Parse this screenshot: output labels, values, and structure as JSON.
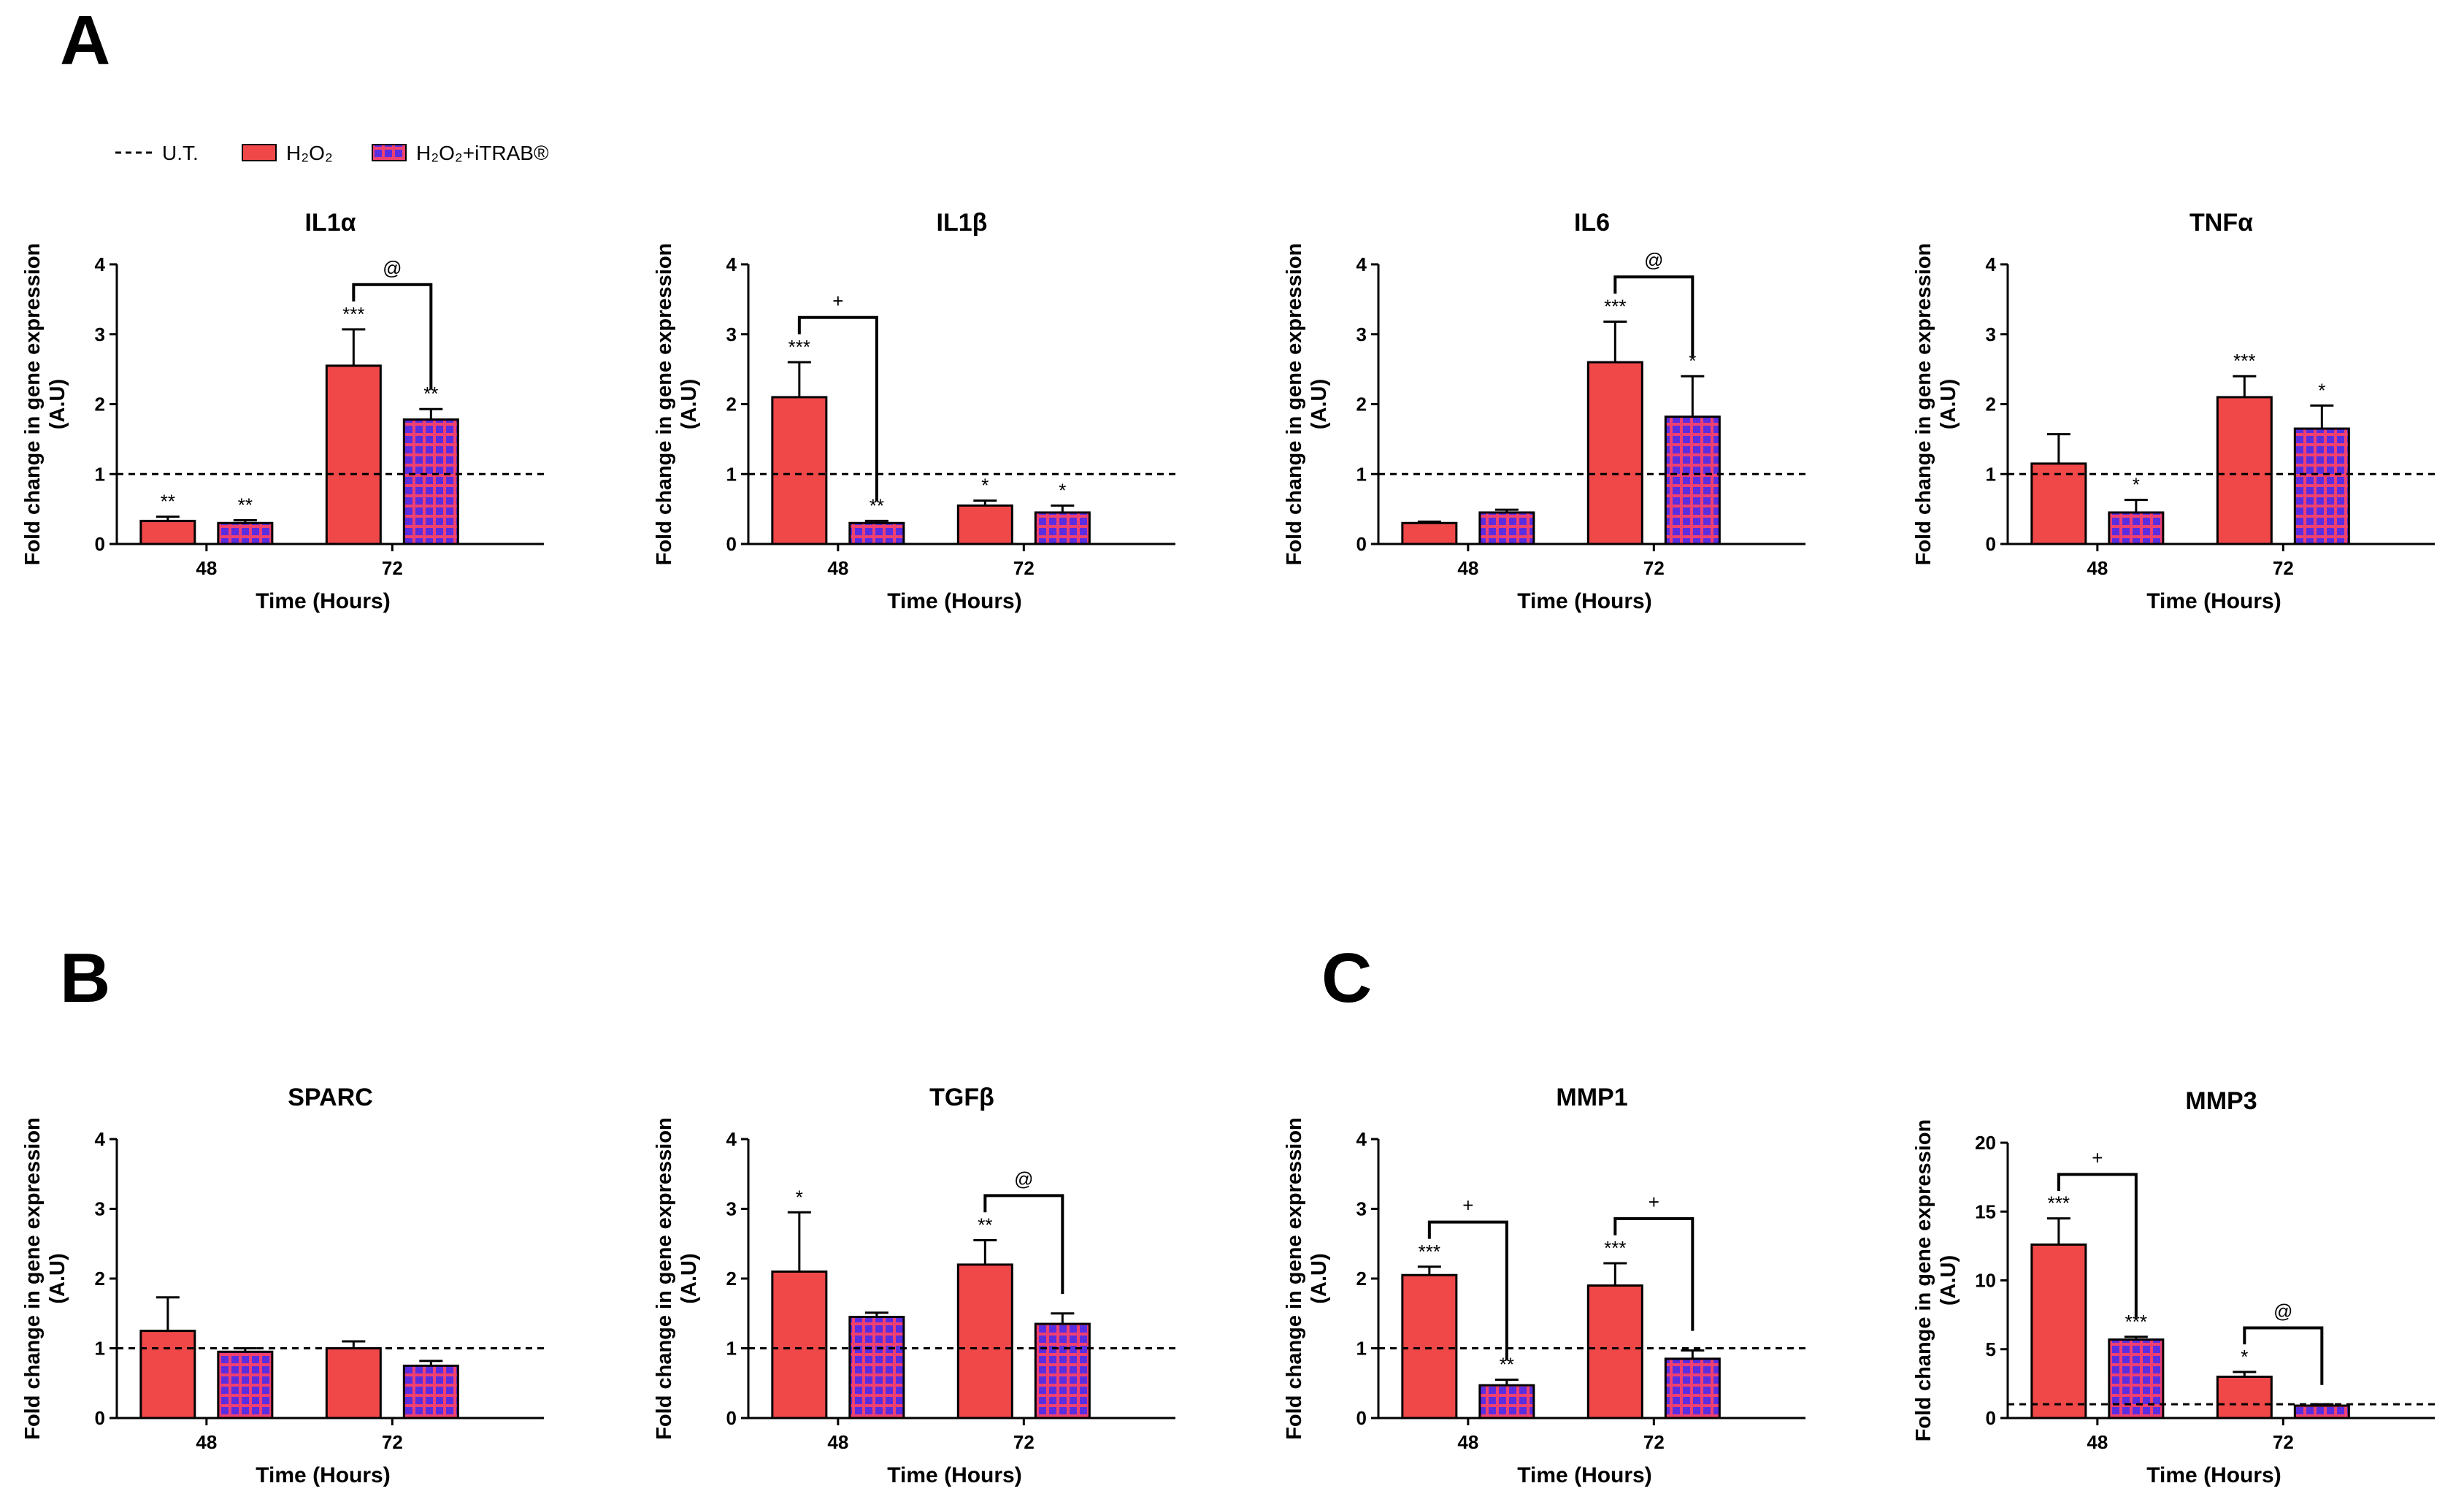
{
  "figure": {
    "panel_letters": {
      "A": "A",
      "B": "B",
      "C": "C"
    },
    "legend": {
      "items": [
        {
          "label": "U.T.",
          "style": "dashed-line"
        },
        {
          "label": "H₂O₂",
          "style": "solid-bar"
        },
        {
          "label": "H₂O₂+iTRAB®",
          "style": "checkered-bar"
        }
      ]
    },
    "colors": {
      "h2o2": "#f04848",
      "itrab_fill": "#5a2ee0",
      "itrab_grid": "#f04070",
      "axis": "#000000"
    }
  },
  "chart_data": [
    {
      "type": "bar",
      "panel": "A",
      "title": "IL1α",
      "xlabel": "Time (Hours)",
      "ylabel": [
        "Fold change in gene expression",
        "(A.U)"
      ],
      "categories": [
        "48",
        "72"
      ],
      "ylim": [
        0,
        4
      ],
      "yticks": [
        "0",
        "1",
        "2",
        "3",
        "4"
      ],
      "baseline": 1,
      "series": [
        {
          "name": "H₂O₂",
          "values": [
            0.33,
            2.55
          ],
          "errors": [
            0.06,
            0.52
          ],
          "sig": [
            "**",
            "***"
          ]
        },
        {
          "name": "H₂O₂+iTRAB®",
          "values": [
            0.3,
            1.78
          ],
          "errors": [
            0.04,
            0.15
          ],
          "sig": [
            "**",
            "**"
          ]
        }
      ],
      "brackets": [
        {
          "category": 1,
          "label": "@"
        }
      ]
    },
    {
      "type": "bar",
      "panel": "A",
      "title": "IL1β",
      "xlabel": "Time (Hours)",
      "ylabel": [
        "Fold change in gene expression",
        "(A.U)"
      ],
      "categories": [
        "48",
        "72"
      ],
      "ylim": [
        0,
        4
      ],
      "yticks": [
        "0",
        "1",
        "2",
        "3",
        "4"
      ],
      "baseline": 1,
      "series": [
        {
          "name": "H₂O₂",
          "values": [
            2.1,
            0.55
          ],
          "errors": [
            0.5,
            0.07
          ],
          "sig": [
            "***",
            "*"
          ]
        },
        {
          "name": "H₂O₂+iTRAB®",
          "values": [
            0.3,
            0.45
          ],
          "errors": [
            0.03,
            0.1
          ],
          "sig": [
            "**",
            "*"
          ]
        }
      ],
      "brackets": [
        {
          "category": 0,
          "label": "+"
        }
      ]
    },
    {
      "type": "bar",
      "panel": "A",
      "title": "IL6",
      "xlabel": "Time (Hours)",
      "ylabel": [
        "Fold change in gene expression",
        "(A.U)"
      ],
      "categories": [
        "48",
        "72"
      ],
      "ylim": [
        0,
        4
      ],
      "yticks": [
        "0",
        "1",
        "2",
        "3",
        "4"
      ],
      "baseline": 1,
      "series": [
        {
          "name": "H₂O₂",
          "values": [
            0.3,
            2.6
          ],
          "errors": [
            0.02,
            0.58
          ],
          "sig": [
            "",
            "***"
          ]
        },
        {
          "name": "H₂O₂+iTRAB®",
          "values": [
            0.45,
            1.82
          ],
          "errors": [
            0.04,
            0.58
          ],
          "sig": [
            "",
            "*"
          ]
        }
      ],
      "brackets": [
        {
          "category": 1,
          "label": "@"
        }
      ]
    },
    {
      "type": "bar",
      "panel": "A",
      "title": "TNFα",
      "xlabel": "Time (Hours)",
      "ylabel": [
        "Fold change in gene expression",
        "(A.U)"
      ],
      "categories": [
        "48",
        "72"
      ],
      "ylim": [
        0,
        4
      ],
      "yticks": [
        "0",
        "1",
        "2",
        "3",
        "4"
      ],
      "baseline": 1,
      "series": [
        {
          "name": "H₂O₂",
          "values": [
            1.15,
            2.1
          ],
          "errors": [
            0.42,
            0.3
          ],
          "sig": [
            "",
            "***"
          ]
        },
        {
          "name": "H₂O₂+iTRAB®",
          "values": [
            0.45,
            1.65
          ],
          "errors": [
            0.18,
            0.33
          ],
          "sig": [
            "*",
            "*"
          ]
        }
      ],
      "brackets": []
    },
    {
      "type": "bar",
      "panel": "B",
      "title": "SPARC",
      "xlabel": "Time (Hours)",
      "ylabel": [
        "Fold change in gene expression",
        "(A.U)"
      ],
      "categories": [
        "48",
        "72"
      ],
      "ylim": [
        0,
        4
      ],
      "yticks": [
        "0",
        "1",
        "2",
        "3",
        "4"
      ],
      "baseline": 1,
      "series": [
        {
          "name": "H₂O₂",
          "values": [
            1.25,
            1.0
          ],
          "errors": [
            0.48,
            0.1
          ],
          "sig": [
            "",
            ""
          ]
        },
        {
          "name": "H₂O₂+iTRAB®",
          "values": [
            0.95,
            0.75
          ],
          "errors": [
            0.05,
            0.07
          ],
          "sig": [
            "",
            ""
          ]
        }
      ],
      "brackets": []
    },
    {
      "type": "bar",
      "panel": "B",
      "title": "TGFβ",
      "xlabel": "Time (Hours)",
      "ylabel": [
        "Fold change in gene expression",
        "(A.U)"
      ],
      "categories": [
        "48",
        "72"
      ],
      "ylim": [
        0,
        4
      ],
      "yticks": [
        "0",
        "1",
        "2",
        "3",
        "4"
      ],
      "baseline": 1,
      "series": [
        {
          "name": "H₂O₂",
          "values": [
            2.1,
            2.2
          ],
          "errors": [
            0.85,
            0.35
          ],
          "sig": [
            "*",
            "**"
          ]
        },
        {
          "name": "H₂O₂+iTRAB®",
          "values": [
            1.45,
            1.35
          ],
          "errors": [
            0.06,
            0.15
          ],
          "sig": [
            "",
            ""
          ]
        }
      ],
      "brackets": [
        {
          "category": 1,
          "label": "@"
        }
      ]
    },
    {
      "type": "bar",
      "panel": "C",
      "title": "MMP1",
      "xlabel": "Time (Hours)",
      "ylabel": [
        "Fold change in gene expression",
        "(A.U)"
      ],
      "categories": [
        "48",
        "72"
      ],
      "ylim": [
        0,
        4
      ],
      "yticks": [
        "0",
        "1",
        "2",
        "3",
        "4"
      ],
      "baseline": 1,
      "series": [
        {
          "name": "H₂O₂",
          "values": [
            2.05,
            1.9
          ],
          "errors": [
            0.12,
            0.32
          ],
          "sig": [
            "***",
            "***"
          ]
        },
        {
          "name": "H₂O₂+iTRAB®",
          "values": [
            0.47,
            0.85
          ],
          "errors": [
            0.08,
            0.12
          ],
          "sig": [
            "**",
            ""
          ]
        }
      ],
      "brackets": [
        {
          "category": 0,
          "label": "+"
        },
        {
          "category": 1,
          "label": "+"
        }
      ]
    },
    {
      "type": "bar",
      "panel": "C",
      "title": "MMP3",
      "xlabel": "Time (Hours)",
      "ylabel": [
        "Fold change in gene expression",
        "(A.U)"
      ],
      "categories": [
        "48",
        "72"
      ],
      "ylim": [
        0,
        20
      ],
      "yticks": [
        "0",
        "5",
        "10",
        "15",
        "20"
      ],
      "baseline": 1,
      "series": [
        {
          "name": "H₂O₂",
          "values": [
            12.6,
            3.0
          ],
          "errors": [
            1.9,
            0.35
          ],
          "sig": [
            "***",
            "*"
          ]
        },
        {
          "name": "H₂O₂+iTRAB®",
          "values": [
            5.7,
            0.9
          ],
          "errors": [
            0.2,
            0.1
          ],
          "sig": [
            "***",
            ""
          ]
        }
      ],
      "brackets": [
        {
          "category": 0,
          "label": "+"
        },
        {
          "category": 1,
          "label": "@"
        }
      ]
    }
  ]
}
